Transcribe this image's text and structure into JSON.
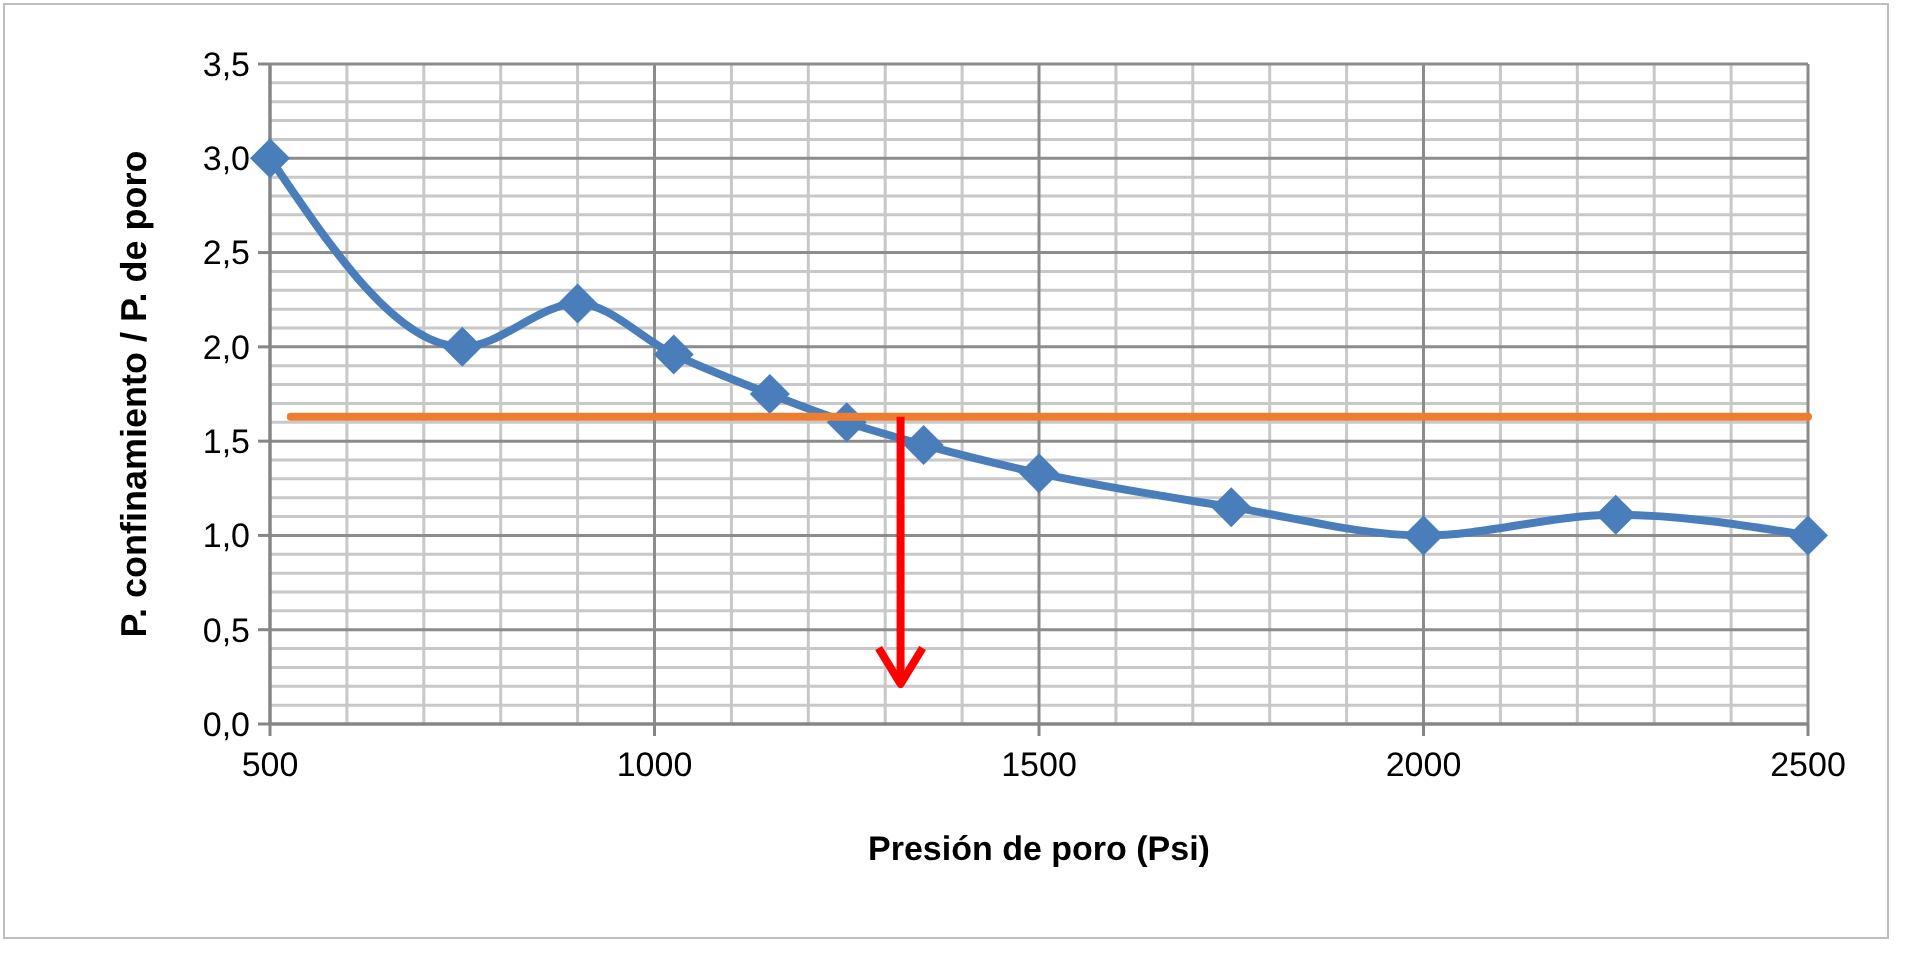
{
  "chart_data": {
    "type": "line",
    "xlabel": "Presión de poro (Psi)",
    "ylabel": "P. confinamiento / P. de poro",
    "x": [
      500,
      750,
      900,
      1025,
      1150,
      1250,
      1350,
      1500,
      1750,
      2000,
      2250,
      2500
    ],
    "series": [
      {
        "color": "#4a7ebb",
        "marker": "diamond",
        "values": [
          3.0,
          2.0,
          2.23,
          1.96,
          1.75,
          1.6,
          1.48,
          1.33,
          1.15,
          1.0,
          1.11,
          1.0
        ]
      },
      {
        "color": "#ed7d31",
        "marker": "none",
        "x": [
          527,
          2500
        ],
        "values": [
          1.63,
          1.63
        ]
      }
    ],
    "xlim": [
      500,
      2500
    ],
    "xticks": [
      500,
      1000,
      1500,
      2000,
      2500
    ],
    "ylim": [
      0,
      3.5
    ],
    "yticks": [
      {
        "value": 0,
        "label": "0,0"
      },
      {
        "value": 0.5,
        "label": "0,5"
      },
      {
        "value": 1,
        "label": "1,0"
      },
      {
        "value": 1.5,
        "label": "1,5"
      },
      {
        "value": 2,
        "label": "2,0"
      },
      {
        "value": 2.5,
        "label": "2,5"
      },
      {
        "value": 3,
        "label": "3,0"
      },
      {
        "value": 3.5,
        "label": "3,5"
      }
    ],
    "grid": true
  }
}
